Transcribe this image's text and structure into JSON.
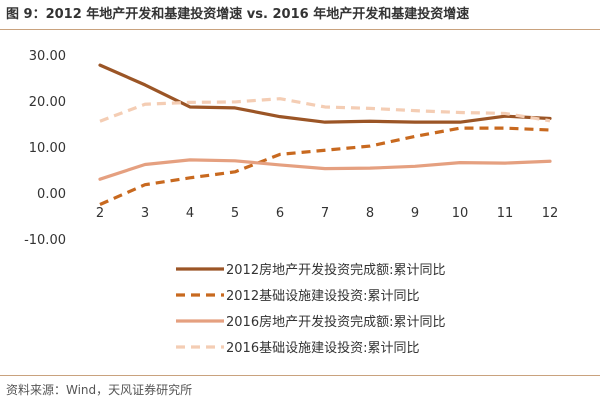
{
  "title": "图 9：2012 年地产开发和基建投资增速 vs. 2016 年地产开发和基建投资增速",
  "source": "资料来源：Wind，天风证券研究所",
  "chart_data": {
    "type": "line",
    "x": [
      2,
      3,
      4,
      5,
      6,
      7,
      8,
      9,
      10,
      11,
      12
    ],
    "ylim": [
      -10,
      30
    ],
    "yticks": [
      -10,
      0,
      10,
      20,
      30
    ],
    "ytick_labels": [
      "-10.00",
      "0.00",
      "10.00",
      "20.00",
      "30.00"
    ],
    "grid": false,
    "legend_position": "bottom",
    "series": [
      {
        "name": "2012房地产开发投资完成额:累计同比",
        "color": "#9b5526",
        "dash": "solid",
        "values": [
          27.8,
          23.5,
          18.7,
          18.5,
          16.6,
          15.4,
          15.6,
          15.4,
          15.4,
          16.7,
          16.2
        ]
      },
      {
        "name": "2012基础设施建设投资:累计同比",
        "color": "#c8691f",
        "dash": "dashed",
        "values": [
          -2.5,
          1.8,
          3.3,
          4.6,
          8.4,
          9.3,
          10.2,
          12.3,
          14.1,
          14.1,
          13.7
        ]
      },
      {
        "name": "2016房地产开发投资完成额:累计同比",
        "color": "#e5a080",
        "dash": "solid",
        "values": [
          3.0,
          6.2,
          7.2,
          7.0,
          6.1,
          5.3,
          5.4,
          5.8,
          6.6,
          6.5,
          6.9
        ]
      },
      {
        "name": "2016基础设施建设投资:累计同比",
        "color": "#f4cdb4",
        "dash": "dashed",
        "values": [
          15.6,
          19.3,
          19.7,
          19.8,
          20.5,
          18.7,
          18.4,
          17.9,
          17.5,
          17.3,
          15.7
        ]
      }
    ]
  }
}
